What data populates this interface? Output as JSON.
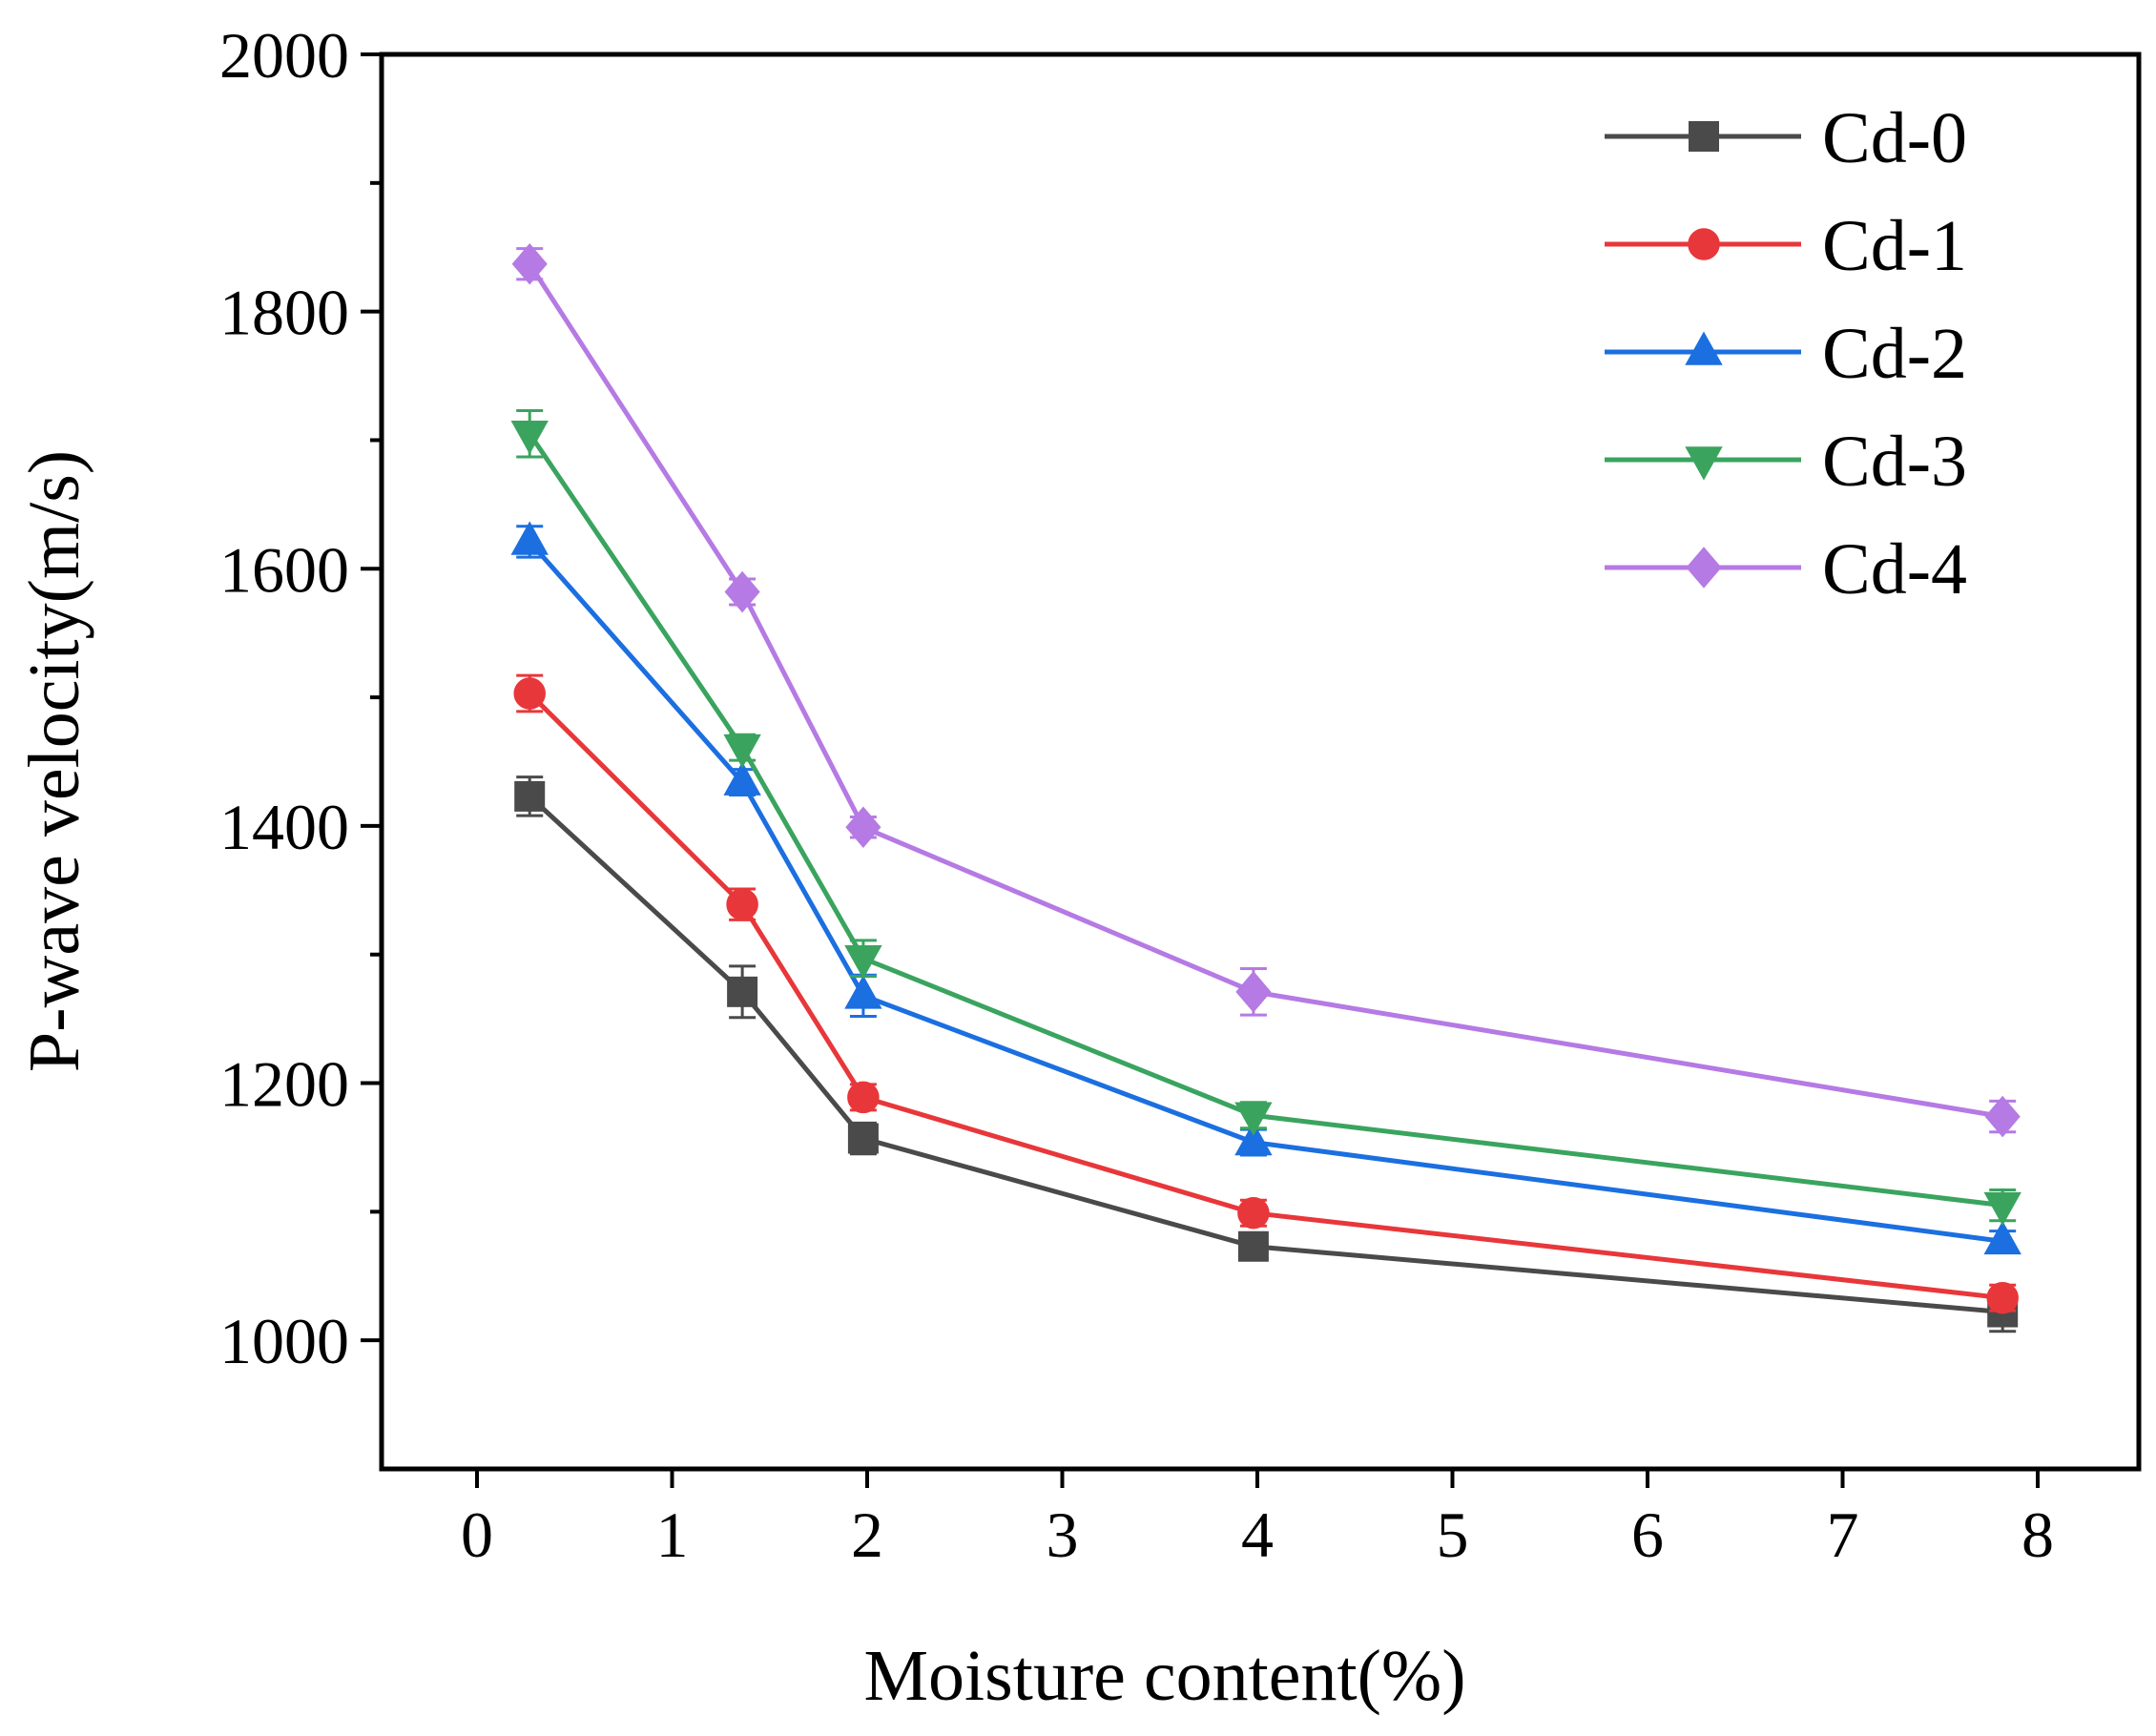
{
  "chart_data": {
    "type": "line",
    "title": "",
    "xlabel": "Moisture content(%)",
    "ylabel": "P-wave velocity(m/s)",
    "xlim": [
      -0.5,
      8.5
    ],
    "ylim": [
      900,
      2000
    ],
    "x_ticks": [
      {
        "label": "0",
        "pos": 0
      },
      {
        "label": "1",
        "pos": 1
      },
      {
        "label": "2",
        "pos": 2
      },
      {
        "label": "3",
        "pos": 3
      },
      {
        "label": "4",
        "pos": 4
      },
      {
        "label": "5",
        "pos": 5
      },
      {
        "label": "6",
        "pos": 6
      },
      {
        "label": "7",
        "pos": 7
      },
      {
        "label": "8",
        "pos": 8
      }
    ],
    "y_ticks": [
      1000,
      1200,
      1400,
      1600,
      1800,
      2000
    ],
    "x": [
      0.27,
      1.36,
      1.98,
      3.98,
      7.82
    ],
    "grid": false,
    "legend_position": "top-right",
    "series": [
      {
        "name": "Cd-0",
        "color": "#4a4a4a",
        "marker": "square",
        "values": [
          1423,
          1271,
          1157,
          1073,
          1022
        ],
        "errors": [
          15,
          20,
          12,
          8,
          15
        ]
      },
      {
        "name": "Cd-1",
        "color": "#e8373a",
        "marker": "circle",
        "values": [
          1503,
          1339,
          1189,
          1099,
          1033
        ],
        "errors": [
          14,
          12,
          10,
          10,
          10
        ]
      },
      {
        "name": "Cd-2",
        "color": "#1b6fe0",
        "marker": "triangle-up",
        "values": [
          1621,
          1434,
          1268,
          1154,
          1077
        ],
        "errors": [
          12,
          10,
          16,
          10,
          8
        ]
      },
      {
        "name": "Cd-3",
        "color": "#3aa45f",
        "marker": "triangle-down",
        "values": [
          1705,
          1461,
          1297,
          1175,
          1105
        ],
        "errors": [
          18,
          10,
          14,
          10,
          12
        ]
      },
      {
        "name": "Cd-4",
        "color": "#b57ae3",
        "marker": "diamond",
        "values": [
          1837,
          1582,
          1399,
          1271,
          1174
        ],
        "errors": [
          12,
          10,
          8,
          18,
          12
        ]
      }
    ]
  }
}
